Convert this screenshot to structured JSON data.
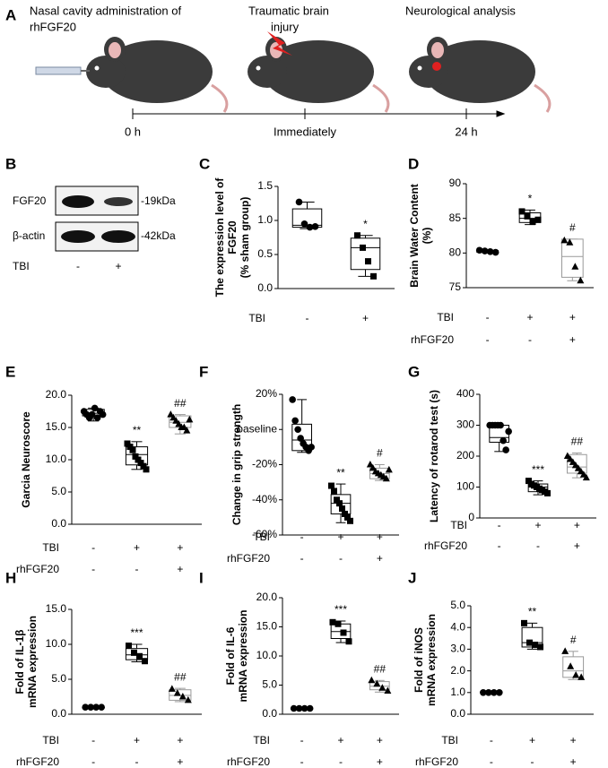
{
  "schematic": {
    "panel": "A",
    "step1": [
      "Nasal cavity administration of",
      "rhFGF20"
    ],
    "step2": [
      "Traumatic brain",
      "injury"
    ],
    "step3": "Neurological analysis",
    "times": [
      "0 h",
      "Immediately",
      "24 h"
    ]
  },
  "blot": {
    "panel": "B",
    "bands": [
      "FGF20",
      "β-actin"
    ],
    "sizes": [
      "-19kDa",
      "-42kDa"
    ],
    "row": {
      "name": "TBI",
      "values": [
        "-",
        "+"
      ]
    }
  },
  "chart_data": [
    {
      "type": "box",
      "panel": "C",
      "ylabel": [
        "The expression level of",
        "FGF20",
        "(% sham group)"
      ],
      "ylim": [
        0,
        1.5
      ],
      "yticks": [
        {
          "value": 0,
          "label": "0.0"
        },
        {
          "value": 0.5,
          "label": "0.5"
        },
        {
          "value": 1,
          "label": "1.0"
        },
        {
          "value": 1.5,
          "label": "1.5"
        }
      ],
      "rows": [
        {
          "name": "TBI",
          "values": [
            "-",
            "+"
          ]
        }
      ],
      "groups": [
        {
          "marker": "circle",
          "color": "#000000",
          "points": [
            1.27,
            0.95,
            0.9,
            0.91
          ],
          "box": {
            "min": 0.88,
            "q1": 0.9,
            "median": 0.93,
            "q3": 1.17,
            "max": 1.27
          }
        },
        {
          "marker": "square",
          "color": "#000000",
          "points": [
            0.78,
            0.6,
            0.4,
            0.18
          ],
          "box": {
            "min": 0.18,
            "q1": 0.28,
            "median": 0.6,
            "q3": 0.74,
            "max": 0.78
          },
          "annotation": "*"
        }
      ]
    },
    {
      "type": "box",
      "panel": "D",
      "ylabel": [
        "Brain Water Content",
        "(%)"
      ],
      "ylim": [
        75,
        90
      ],
      "yticks": [
        75,
        80,
        85,
        90
      ],
      "rows": [
        {
          "name": "TBI",
          "values": [
            "-",
            "+",
            "+"
          ]
        },
        {
          "name": "rhFGF20",
          "values": [
            "-",
            "-",
            "+"
          ]
        }
      ],
      "groups": [
        {
          "marker": "circle",
          "color": "#000000",
          "points": [
            80.4,
            80.3,
            80.2,
            80.1
          ],
          "box": {
            "min": 80.0,
            "q1": 80.1,
            "median": 80.2,
            "q3": 80.35,
            "max": 80.4
          }
        },
        {
          "marker": "square",
          "color": "#000000",
          "points": [
            86.0,
            85.3,
            84.5,
            84.8
          ],
          "box": {
            "min": 84.1,
            "q1": 84.4,
            "median": 85.0,
            "q3": 85.8,
            "max": 86.2
          },
          "annotation": "*"
        },
        {
          "marker": "triangle",
          "color": "#999999",
          "points": [
            81.8,
            81.5,
            78.0,
            76.0
          ],
          "box": {
            "min": 76.0,
            "q1": 76.5,
            "median": 79.5,
            "q3": 82.0,
            "max": 82.0
          },
          "annotation": "#"
        }
      ]
    },
    {
      "type": "box",
      "panel": "E",
      "ylabel": [
        "Garcia Neuroscore"
      ],
      "ylim": [
        0,
        20
      ],
      "yticks": [
        {
          "value": 0,
          "label": "0.0"
        },
        {
          "value": 5,
          "label": "5.0"
        },
        {
          "value": 10,
          "label": "10.0"
        },
        {
          "value": 15,
          "label": "15.0"
        },
        {
          "value": 20,
          "label": "20.0"
        }
      ],
      "rows": [
        {
          "name": "TBI",
          "values": [
            "-",
            "+",
            "+"
          ]
        },
        {
          "name": "rhFGF20",
          "values": [
            "-",
            "-",
            "+"
          ]
        }
      ],
      "groups": [
        {
          "marker": "circle",
          "color": "#000000",
          "points": [
            17.5,
            17,
            16.5,
            17,
            18,
            16.5,
            17.5,
            17
          ],
          "box": {
            "min": 16,
            "q1": 16.8,
            "median": 17.2,
            "q3": 17.8,
            "max": 18
          }
        },
        {
          "marker": "square",
          "color": "#000000",
          "points": [
            12.5,
            12,
            11.5,
            10.5,
            10,
            9.5,
            9,
            8.5
          ],
          "box": {
            "min": 8.5,
            "q1": 9.2,
            "median": 10.8,
            "q3": 12,
            "max": 12.8
          },
          "annotation": "**"
        },
        {
          "marker": "triangle",
          "color": "#999999",
          "points": [
            17,
            16.5,
            16,
            15.5,
            15,
            15,
            14.5,
            16.2
          ],
          "box": {
            "min": 14,
            "q1": 15,
            "median": 15.8,
            "q3": 16.8,
            "max": 17
          },
          "annotation": "##"
        }
      ]
    },
    {
      "type": "box",
      "panel": "F",
      "ylabel": [
        "Change in grip strength"
      ],
      "ylim": [
        -60,
        20
      ],
      "yticks": [
        {
          "value": 20,
          "label": "20%"
        },
        {
          "value": 0,
          "label": "baseline"
        },
        {
          "value": -20,
          "label": "-20%"
        },
        {
          "value": -40,
          "label": "-40%"
        },
        {
          "value": -60,
          "label": "-60%"
        }
      ],
      "rows": [
        {
          "name": "TBI",
          "values": [
            "-",
            "+",
            "+"
          ]
        },
        {
          "name": "rhFGF20",
          "values": [
            "-",
            "-",
            "+"
          ]
        }
      ],
      "groups": [
        {
          "marker": "circle",
          "color": "#000000",
          "points": [
            17,
            5,
            0,
            -5,
            -8,
            -10,
            -12,
            -10
          ],
          "box": {
            "min": -13,
            "q1": -12,
            "median": -6,
            "q3": 3,
            "max": 17
          }
        },
        {
          "marker": "square",
          "color": "#000000",
          "points": [
            -32,
            -35,
            -40,
            -42,
            -45,
            -48,
            -50,
            -52
          ],
          "box": {
            "min": -53,
            "q1": -48,
            "median": -42,
            "q3": -37,
            "max": -31
          },
          "annotation": "**"
        },
        {
          "marker": "triangle",
          "color": "#999999",
          "points": [
            -20,
            -22,
            -24,
            -25,
            -26,
            -27,
            -28,
            -23
          ],
          "box": {
            "min": -29,
            "q1": -28,
            "median": -25,
            "q3": -22,
            "max": -20
          },
          "annotation": "#"
        }
      ]
    },
    {
      "type": "box",
      "panel": "G",
      "ylabel": [
        "Latency of rotarod test (s)"
      ],
      "ylim": [
        0,
        400
      ],
      "yticks": [
        0,
        100,
        200,
        300,
        400
      ],
      "rows": [
        {
          "name": "TBI",
          "values": [
            "-",
            "+",
            "+"
          ]
        },
        {
          "name": "rhFGF20",
          "values": [
            "-",
            "-",
            "+"
          ]
        }
      ],
      "groups": [
        {
          "marker": "circle",
          "color": "#000000",
          "points": [
            300,
            300,
            300,
            300,
            300,
            250,
            220,
            280
          ],
          "box": {
            "min": 215,
            "q1": 245,
            "median": 260,
            "q3": 300,
            "max": 300
          }
        },
        {
          "marker": "square",
          "color": "#000000",
          "points": [
            120,
            110,
            105,
            100,
            95,
            90,
            85,
            80
          ],
          "box": {
            "min": 75,
            "q1": 85,
            "median": 100,
            "q3": 110,
            "max": 120
          },
          "annotation": "***"
        },
        {
          "marker": "triangle",
          "color": "#999999",
          "points": [
            200,
            190,
            180,
            170,
            160,
            150,
            140,
            130
          ],
          "box": {
            "min": 130,
            "q1": 145,
            "median": 165,
            "q3": 205,
            "max": 210
          },
          "annotation": "##"
        }
      ]
    },
    {
      "type": "box",
      "panel": "H",
      "ylabel": [
        "Fold of IL-1β",
        "mRNA expression"
      ],
      "ylim": [
        0,
        15
      ],
      "yticks": [
        {
          "value": 0,
          "label": "0.0"
        },
        {
          "value": 5,
          "label": "5.0"
        },
        {
          "value": 10,
          "label": "10.0"
        },
        {
          "value": 15,
          "label": "15.0"
        }
      ],
      "rows": [
        {
          "name": "TBI",
          "values": [
            "-",
            "+",
            "+"
          ]
        },
        {
          "name": "rhFGF20",
          "values": [
            "-",
            "-",
            "+"
          ]
        }
      ],
      "groups": [
        {
          "marker": "circle",
          "color": "#000000",
          "points": [
            1,
            1,
            1,
            1
          ],
          "box": {
            "min": 1,
            "q1": 1,
            "median": 1,
            "q3": 1,
            "max": 1
          }
        },
        {
          "marker": "square",
          "color": "#000000",
          "points": [
            9.8,
            8.8,
            8.3,
            7.6
          ],
          "box": {
            "min": 7.5,
            "q1": 7.8,
            "median": 8.5,
            "q3": 9.4,
            "max": 10
          },
          "annotation": "***"
        },
        {
          "marker": "triangle",
          "color": "#999999",
          "points": [
            3.6,
            3.0,
            2.5,
            2.0
          ],
          "box": {
            "min": 1.8,
            "q1": 2.0,
            "median": 2.7,
            "q3": 3.5,
            "max": 3.7
          },
          "annotation": "##"
        }
      ]
    },
    {
      "type": "box",
      "panel": "I",
      "ylabel": [
        "Fold of IL-6",
        "mRNA expression"
      ],
      "ylim": [
        0,
        20
      ],
      "yticks": [
        {
          "value": 0,
          "label": "0.0"
        },
        {
          "value": 5,
          "label": "5.0"
        },
        {
          "value": 10,
          "label": "10.0"
        },
        {
          "value": 15,
          "label": "15.0"
        },
        {
          "value": 20,
          "label": "20.0"
        }
      ],
      "rows": [
        {
          "name": "TBI",
          "values": [
            "-",
            "+",
            "+"
          ]
        },
        {
          "name": "rhFGF20",
          "values": [
            "-",
            "-",
            "+"
          ]
        }
      ],
      "groups": [
        {
          "marker": "circle",
          "color": "#000000",
          "points": [
            1,
            1,
            1,
            1
          ],
          "box": {
            "min": 1,
            "q1": 1,
            "median": 1,
            "q3": 1,
            "max": 1
          }
        },
        {
          "marker": "square",
          "color": "#000000",
          "points": [
            15.8,
            15.5,
            14,
            12.5
          ],
          "box": {
            "min": 12.3,
            "q1": 13,
            "median": 14.2,
            "q3": 15.5,
            "max": 16
          },
          "annotation": "***"
        },
        {
          "marker": "triangle",
          "color": "#999999",
          "points": [
            5.8,
            5.2,
            4.5,
            4.0
          ],
          "box": {
            "min": 3.8,
            "q1": 4.2,
            "median": 4.8,
            "q3": 5.6,
            "max": 5.8
          },
          "annotation": "##"
        }
      ]
    },
    {
      "type": "box",
      "panel": "J",
      "ylabel": [
        "Fold of iNOS",
        "mRNA expression"
      ],
      "ylim": [
        0,
        5
      ],
      "yticks": [
        {
          "value": 0,
          "label": "0.0"
        },
        {
          "value": 1,
          "label": "1.0"
        },
        {
          "value": 2,
          "label": "2.0"
        },
        {
          "value": 3,
          "label": "3.0"
        },
        {
          "value": 4,
          "label": "4.0"
        },
        {
          "value": 5,
          "label": "5.0"
        }
      ],
      "rows": [
        {
          "name": "TBI",
          "values": [
            "-",
            "+",
            "+"
          ]
        },
        {
          "name": "rhFGF20",
          "values": [
            "-",
            "-",
            "+"
          ]
        }
      ],
      "groups": [
        {
          "marker": "circle",
          "color": "#000000",
          "points": [
            1,
            1,
            1,
            1
          ],
          "box": {
            "min": 1,
            "q1": 1,
            "median": 1,
            "q3": 1,
            "max": 1
          }
        },
        {
          "marker": "square",
          "color": "#000000",
          "points": [
            4.2,
            3.3,
            3.2,
            3.1
          ],
          "box": {
            "min": 3.0,
            "q1": 3.1,
            "median": 3.3,
            "q3": 4.0,
            "max": 4.2
          },
          "annotation": "**"
        },
        {
          "marker": "triangle",
          "color": "#999999",
          "points": [
            2.9,
            2.2,
            1.8,
            1.7
          ],
          "box": {
            "min": 1.6,
            "q1": 1.7,
            "median": 2.0,
            "q3": 2.65,
            "max": 2.9
          },
          "annotation": "#"
        }
      ]
    }
  ]
}
